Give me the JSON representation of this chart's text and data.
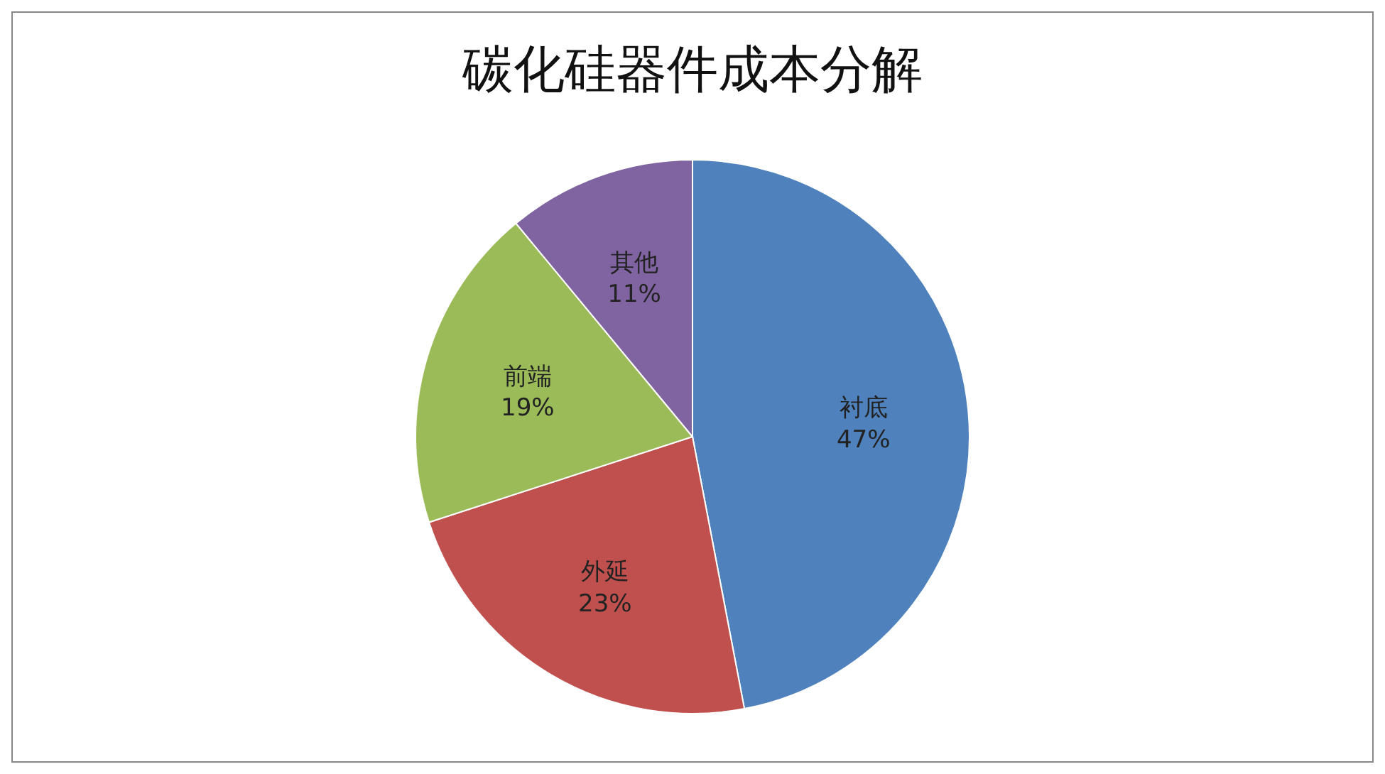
{
  "chart_data": {
    "type": "pie",
    "title": "碳化硅器件成本分解",
    "categories": [
      "衬底",
      "外延",
      "前端",
      "其他"
    ],
    "values": [
      47,
      23,
      19,
      11
    ],
    "value_labels": [
      "47%",
      "23%",
      "19%",
      "11%"
    ],
    "colors": [
      "#4f81bd",
      "#c0504d",
      "#9bbb59",
      "#8064a2"
    ],
    "legend": false
  }
}
